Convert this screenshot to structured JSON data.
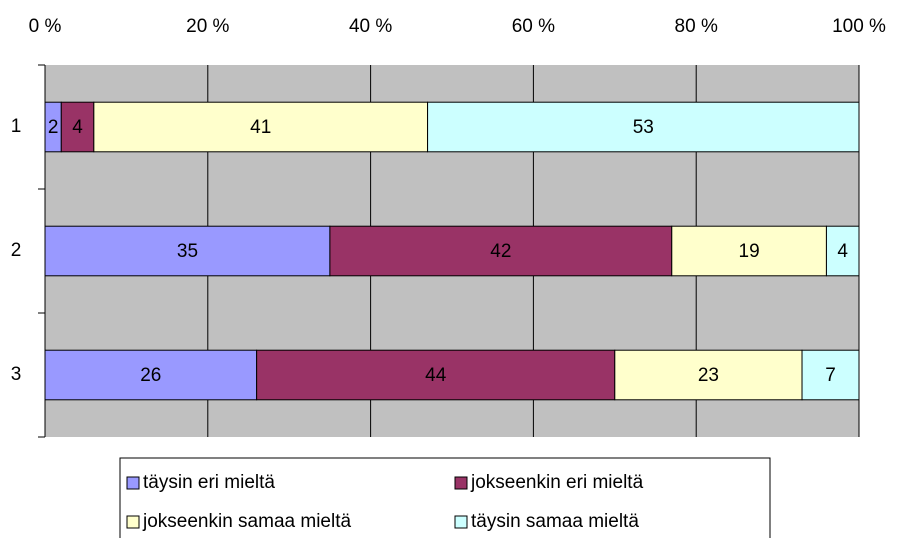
{
  "chart_data": {
    "type": "bar",
    "orientation": "horizontal",
    "stacked": true,
    "categories": [
      "1",
      "2",
      "3"
    ],
    "series": [
      {
        "name": "täysin eri mieltä",
        "color": "#9999ff",
        "values": [
          2,
          35,
          26
        ]
      },
      {
        "name": "jokseenkin eri mieltä",
        "color": "#993366",
        "values": [
          4,
          42,
          44
        ]
      },
      {
        "name": "jokseenkin samaa mieltä",
        "color": "#ffffcc",
        "values": [
          41,
          19,
          23
        ]
      },
      {
        "name": "täysin samaa mieltä",
        "color": "#ccffff",
        "values": [
          53,
          4,
          7
        ]
      }
    ],
    "xlim": [
      0,
      100
    ],
    "xticks": [
      {
        "value": 0,
        "label": "0 %"
      },
      {
        "value": 20,
        "label": "20 %"
      },
      {
        "value": 40,
        "label": "40 %"
      },
      {
        "value": 60,
        "label": "60 %"
      },
      {
        "value": 80,
        "label": "80 %"
      },
      {
        "value": 100,
        "label": "100 %"
      }
    ],
    "grid": true,
    "legend": "bottom",
    "plot_background": "#c0c0c0"
  }
}
